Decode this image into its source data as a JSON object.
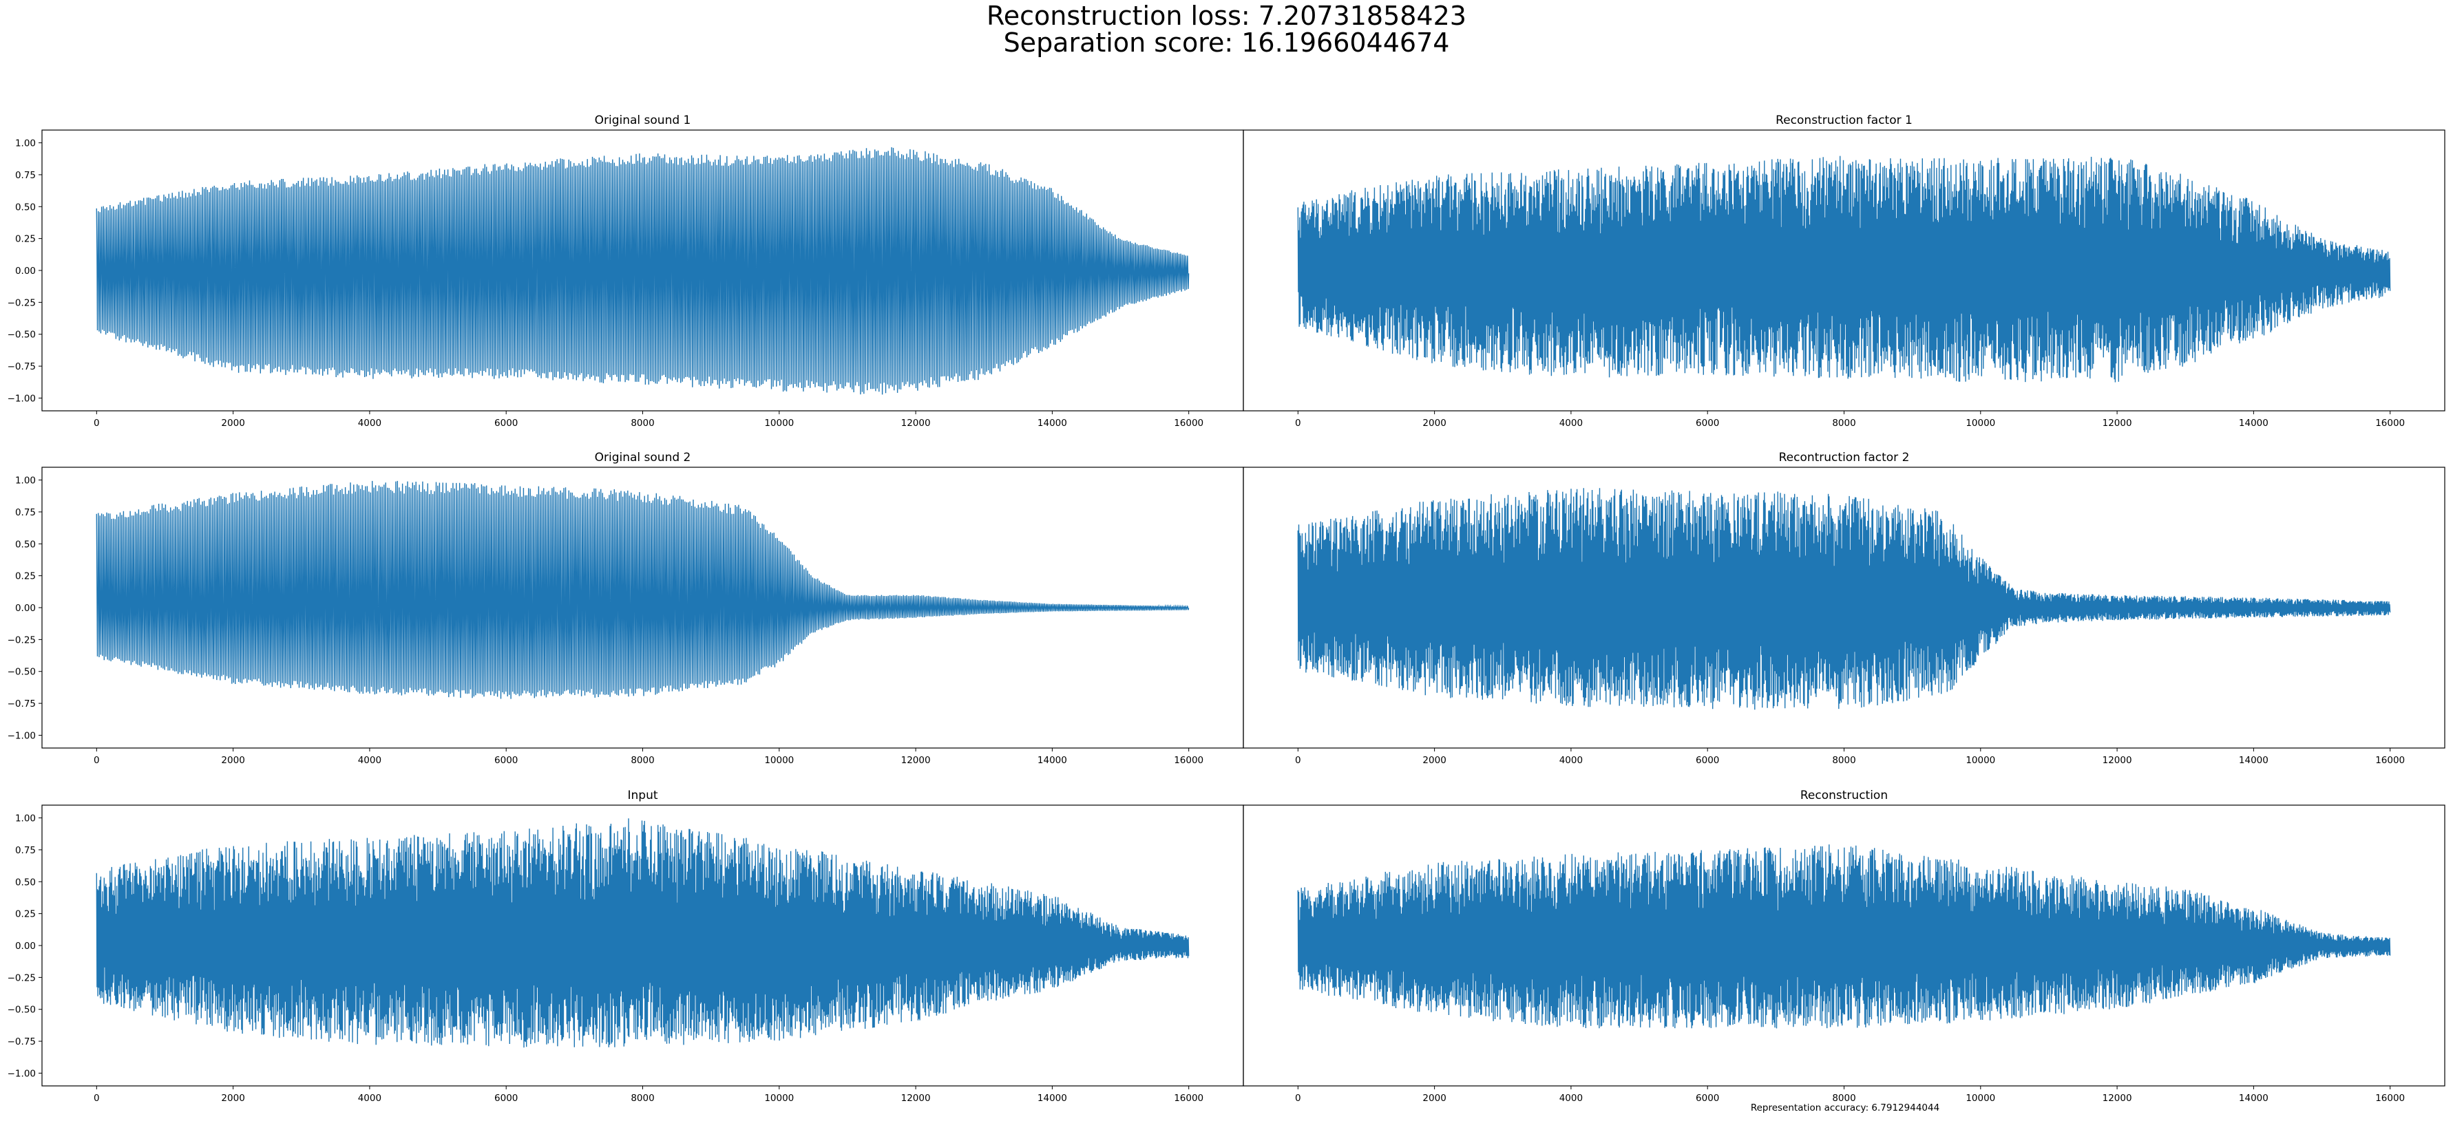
{
  "figure": {
    "title_line1": "Reconstruction loss: 7.20731858423",
    "title_line2": "Separation score: 16.1966044674",
    "footer": "Representation accuracy: 6.7912944044",
    "line_color": "#1f77b4"
  },
  "chart_data": [
    {
      "type": "line",
      "title": "Original sound 1",
      "xlabel": "",
      "ylabel": "",
      "xlim": [
        -800,
        16800
      ],
      "ylim": [
        -1.1,
        1.1
      ],
      "xticks": [
        0,
        2000,
        4000,
        6000,
        8000,
        10000,
        12000,
        14000,
        16000
      ],
      "yticks": [
        -1.0,
        -0.75,
        -0.5,
        -0.25,
        0.0,
        0.25,
        0.5,
        0.75,
        1.0
      ],
      "series": [
        {
          "style": "oscillating",
          "n_samples": 16000,
          "envelope_x": [
            0,
            2000,
            4000,
            6000,
            8000,
            10000,
            11700,
            13000,
            14000,
            15000,
            16000
          ],
          "upper": [
            0.5,
            0.7,
            0.75,
            0.85,
            0.92,
            0.9,
            0.98,
            0.85,
            0.65,
            0.25,
            0.12
          ],
          "lower": [
            -0.5,
            -0.8,
            -0.85,
            -0.85,
            -0.9,
            -0.95,
            -0.98,
            -0.85,
            -0.6,
            -0.3,
            -0.15
          ]
        }
      ]
    },
    {
      "type": "line",
      "title": "Reconstruction factor 1",
      "xlabel": "",
      "ylabel": "",
      "xlim": [
        -800,
        16800
      ],
      "ylim": [
        -1.1,
        1.1
      ],
      "xticks": [
        0,
        2000,
        4000,
        6000,
        8000,
        10000,
        12000,
        14000,
        16000
      ],
      "yticks": [],
      "series": [
        {
          "style": "noisy",
          "n_samples": 16000,
          "envelope_x": [
            0,
            2000,
            4000,
            6000,
            8000,
            10000,
            12000,
            13000,
            14000,
            15000,
            16000
          ],
          "upper": [
            0.55,
            0.75,
            0.8,
            0.85,
            0.9,
            0.88,
            0.9,
            0.75,
            0.55,
            0.25,
            0.15
          ],
          "lower": [
            -0.45,
            -0.75,
            -0.85,
            -0.82,
            -0.85,
            -0.88,
            -0.88,
            -0.75,
            -0.55,
            -0.3,
            -0.2
          ]
        }
      ]
    },
    {
      "type": "line",
      "title": "Original sound 2",
      "xlabel": "",
      "ylabel": "",
      "xlim": [
        -800,
        16800
      ],
      "ylim": [
        -1.1,
        1.1
      ],
      "xticks": [
        0,
        2000,
        4000,
        6000,
        8000,
        10000,
        12000,
        14000,
        16000
      ],
      "yticks": [
        -1.0,
        -0.75,
        -0.5,
        -0.25,
        0.0,
        0.25,
        0.5,
        0.75,
        1.0
      ],
      "series": [
        {
          "style": "oscillating",
          "n_samples": 16000,
          "envelope_x": [
            0,
            2000,
            4000,
            6000,
            8000,
            9500,
            10000,
            10500,
            11000,
            12000,
            13000,
            14000,
            16000
          ],
          "upper": [
            0.75,
            0.9,
            1.0,
            0.97,
            0.92,
            0.8,
            0.55,
            0.25,
            0.1,
            0.1,
            0.06,
            0.03,
            0.01
          ],
          "lower": [
            -0.4,
            -0.6,
            -0.68,
            -0.72,
            -0.7,
            -0.6,
            -0.45,
            -0.2,
            -0.1,
            -0.08,
            -0.05,
            -0.03,
            -0.02
          ]
        }
      ]
    },
    {
      "type": "line",
      "title": "Recontruction factor 2",
      "xlabel": "",
      "ylabel": "",
      "xlim": [
        -800,
        16800
      ],
      "ylim": [
        -1.1,
        1.1
      ],
      "xticks": [
        0,
        2000,
        4000,
        6000,
        8000,
        10000,
        12000,
        14000,
        16000
      ],
      "yticks": [],
      "series": [
        {
          "style": "noisy",
          "n_samples": 16000,
          "envelope_x": [
            0,
            2000,
            4000,
            6000,
            8000,
            9500,
            10000,
            10500,
            11000,
            12000,
            14000,
            16000
          ],
          "upper": [
            0.65,
            0.85,
            0.95,
            0.92,
            0.9,
            0.75,
            0.4,
            0.15,
            0.12,
            0.1,
            0.08,
            0.05
          ],
          "lower": [
            -0.5,
            -0.7,
            -0.78,
            -0.8,
            -0.8,
            -0.7,
            -0.4,
            -0.15,
            -0.12,
            -0.1,
            -0.08,
            -0.06
          ]
        }
      ]
    },
    {
      "type": "line",
      "title": "Input",
      "xlabel": "",
      "ylabel": "",
      "xlim": [
        -800,
        16800
      ],
      "ylim": [
        -1.1,
        1.1
      ],
      "xticks": [
        0,
        2000,
        4000,
        6000,
        8000,
        10000,
        12000,
        14000,
        16000
      ],
      "yticks": [
        -1.0,
        -0.75,
        -0.5,
        -0.25,
        0.0,
        0.25,
        0.5,
        0.75,
        1.0
      ],
      "series": [
        {
          "style": "noisy",
          "n_samples": 16000,
          "envelope_x": [
            0,
            2000,
            4000,
            6000,
            7800,
            10000,
            12000,
            13000,
            14000,
            15000,
            16000
          ],
          "upper": [
            0.6,
            0.8,
            0.85,
            0.9,
            1.0,
            0.8,
            0.6,
            0.5,
            0.4,
            0.15,
            0.08
          ],
          "lower": [
            -0.45,
            -0.7,
            -0.78,
            -0.8,
            -0.8,
            -0.75,
            -0.6,
            -0.45,
            -0.35,
            -0.12,
            -0.1
          ]
        }
      ]
    },
    {
      "type": "line",
      "title": "Reconstruction",
      "xlabel": "",
      "ylabel": "",
      "xlim": [
        -800,
        16800
      ],
      "ylim": [
        -1.1,
        1.1
      ],
      "xticks": [
        0,
        2000,
        4000,
        6000,
        8000,
        10000,
        12000,
        14000,
        16000
      ],
      "yticks": [],
      "series": [
        {
          "style": "noisy",
          "n_samples": 16000,
          "envelope_x": [
            0,
            2000,
            4000,
            6000,
            8000,
            10000,
            12000,
            13000,
            14000,
            15000,
            16000
          ],
          "upper": [
            0.45,
            0.65,
            0.72,
            0.75,
            0.8,
            0.65,
            0.5,
            0.45,
            0.3,
            0.1,
            0.06
          ],
          "lower": [
            -0.35,
            -0.55,
            -0.65,
            -0.65,
            -0.65,
            -0.6,
            -0.5,
            -0.4,
            -0.3,
            -0.1,
            -0.08
          ]
        }
      ]
    }
  ]
}
